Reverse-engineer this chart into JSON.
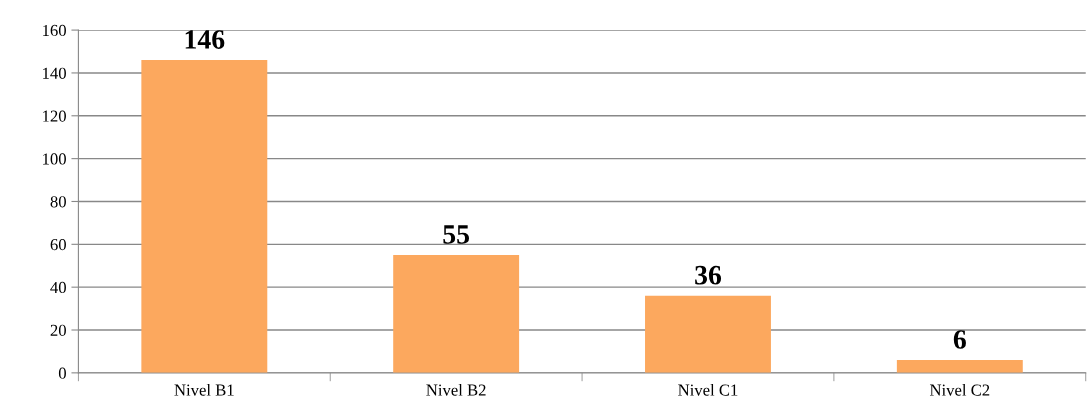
{
  "chart_data": {
    "type": "bar",
    "categories": [
      "Nivel B1",
      "Nivel B2",
      "Nivel C1",
      "Nivel C2"
    ],
    "values": [
      146,
      55,
      36,
      6
    ],
    "color": "#fca85e",
    "ylim": [
      0,
      160
    ],
    "yticks": [
      0,
      20,
      40,
      60,
      80,
      100,
      120,
      140,
      160
    ],
    "grid": "y",
    "data_labels": true
  }
}
